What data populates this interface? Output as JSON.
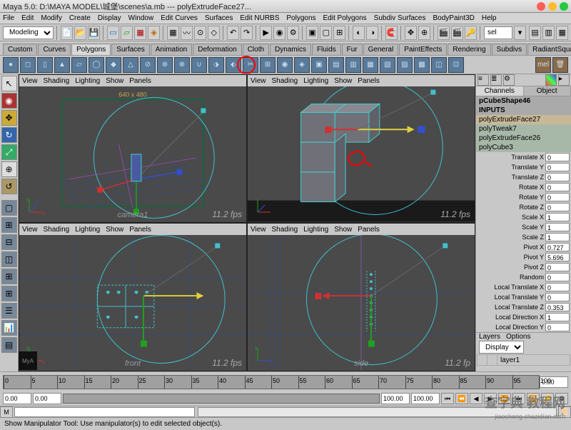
{
  "title": "Maya 5.0: D:\\MAYA MODEL\\城堡\\scenes\\a.mb --- polyExtrudeFace27...",
  "menus": [
    "File",
    "Edit",
    "Modify",
    "Create",
    "Display",
    "Window",
    "Edit Curves",
    "Surfaces",
    "Edit NURBS",
    "Polygons",
    "Edit Polygons",
    "Subdiv Surfaces",
    "BodyPaint3D",
    "Help"
  ],
  "mode_dropdown": "Modeling",
  "shelf_tabs": [
    "Custom",
    "Curves",
    "Polygons",
    "Surfaces",
    "Animation",
    "Deformation",
    "Cloth",
    "Dynamics",
    "Fluids",
    "Fur",
    "General",
    "PaintEffects",
    "Rendering",
    "Subdivs",
    "RadiantSquare"
  ],
  "shelf_active": 2,
  "vp_menu": [
    "View",
    "Shading",
    "Lighting",
    "Show",
    "Panels"
  ],
  "vp": {
    "tl": {
      "label": "camera1",
      "fps": "11.2 fps",
      "dim": "640 x 480"
    },
    "tr": {
      "label": "",
      "fps": "11.2 fps"
    },
    "bl": {
      "label": "front",
      "fps": "11.2 fps"
    },
    "br": {
      "label": "side",
      "fps": "11.2 fp"
    }
  },
  "channels": {
    "tab_channels": "Channels",
    "tab_object": "Object",
    "shape": "pCubeShape46",
    "inputs_label": "INPUTS",
    "inputs": [
      "polyExtrudeFace27",
      "polyTweak7",
      "polyExtrudeFace26",
      "polyCube3"
    ],
    "attrs": [
      {
        "l": "Translate X",
        "v": "0"
      },
      {
        "l": "Translate Y",
        "v": "0"
      },
      {
        "l": "Translate Z",
        "v": "0"
      },
      {
        "l": "Rotate X",
        "v": "0"
      },
      {
        "l": "Rotate Y",
        "v": "0"
      },
      {
        "l": "Rotate Z",
        "v": "0"
      },
      {
        "l": "Scale X",
        "v": "1"
      },
      {
        "l": "Scale Y",
        "v": "1"
      },
      {
        "l": "Scale Z",
        "v": "1"
      },
      {
        "l": "Pivot X",
        "v": "0.727"
      },
      {
        "l": "Pivot Y",
        "v": "5.696"
      },
      {
        "l": "Pivot Z",
        "v": "0"
      },
      {
        "l": "Random",
        "v": "0"
      },
      {
        "l": "Local Translate X",
        "v": "0"
      },
      {
        "l": "Local Translate Y",
        "v": "0"
      },
      {
        "l": "Local Translate Z",
        "v": "0.353"
      },
      {
        "l": "Local Direction X",
        "v": "1"
      },
      {
        "l": "Local Direction Y",
        "v": "0"
      }
    ]
  },
  "layers": {
    "menu": [
      "Layers",
      "Options"
    ],
    "display": "Display",
    "layer1": "layer1"
  },
  "timeline": {
    "ticks": [
      0,
      5,
      10,
      15,
      20,
      25,
      30,
      35,
      40,
      45,
      50,
      55,
      60,
      65,
      70,
      75,
      80,
      85,
      90,
      95,
      100
    ],
    "start": "0.00",
    "end": "100.00",
    "r1": "0.00",
    "r2": "100.00",
    "current": "0.00"
  },
  "status": "Show Manipulator Tool: Use manipulator(s) to edit selected object(s).",
  "sel_label": "sel",
  "colors": {
    "grid": "#1a3a7a",
    "grid_accent": "#6a4aa8",
    "circle": "#40c0d0",
    "red": "#d03030",
    "green": "#20a020",
    "blue": "#3050d0",
    "yellow": "#e0d040",
    "cube": "#707078",
    "cube_edge": "#40d0d0",
    "frame": "#0a6a3a"
  }
}
